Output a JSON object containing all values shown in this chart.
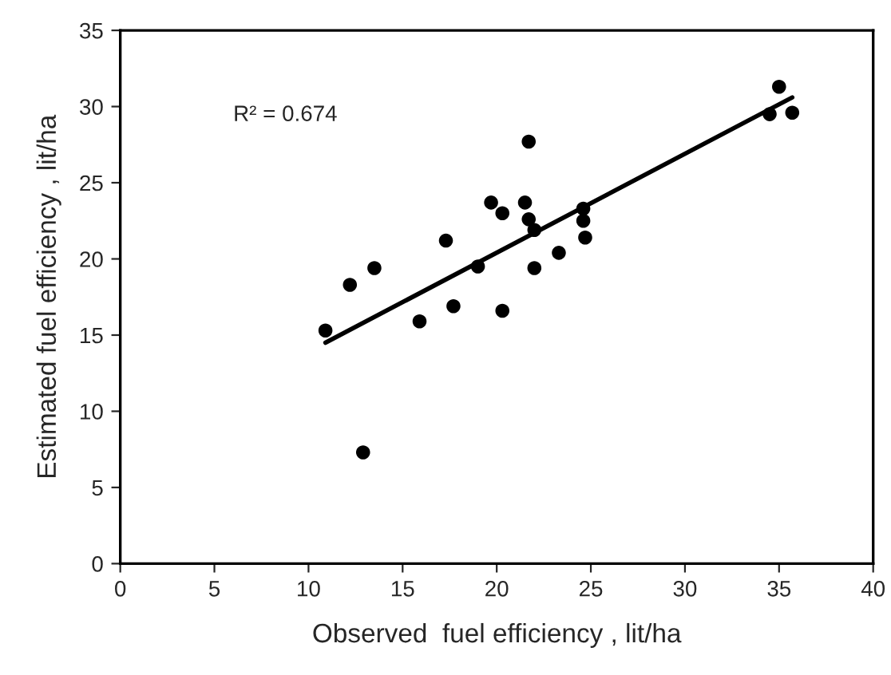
{
  "chart_data": {
    "type": "scatter",
    "xlabel": "Observed  fuel efficiency , lit/ha",
    "ylabel": "Estimated fuel efficiency , lit/ha",
    "xlim": [
      0,
      40
    ],
    "xticks": [
      0,
      5,
      10,
      15,
      20,
      25,
      30,
      35,
      40
    ],
    "ylim": [
      0,
      35
    ],
    "yticks": [
      0,
      5,
      10,
      15,
      20,
      25,
      30,
      35
    ],
    "grid": false,
    "legend": false,
    "annotations": [
      "R² = 0.674"
    ],
    "series": [
      {
        "type": "scatter",
        "color": "#000000",
        "marker": "circle",
        "x": [
          10.9,
          12.2,
          12.9,
          13.5,
          15.9,
          17.3,
          17.7,
          19.0,
          19.7,
          20.3,
          20.3,
          21.5,
          21.7,
          21.7,
          22.0,
          22.0,
          23.3,
          24.6,
          24.6,
          24.7,
          34.5,
          35.0,
          35.7
        ],
        "values": [
          15.3,
          18.3,
          7.3,
          19.4,
          15.9,
          21.2,
          16.9,
          19.5,
          23.7,
          23.0,
          16.6,
          23.7,
          22.6,
          27.7,
          21.9,
          19.4,
          20.4,
          23.3,
          22.5,
          21.4,
          29.5,
          31.3,
          29.6
        ]
      },
      {
        "type": "line",
        "color": "#000000",
        "marker": "none",
        "line_style": "solid",
        "x": [
          10.9,
          35.7
        ],
        "values": [
          14.5,
          30.6
        ]
      }
    ]
  }
}
